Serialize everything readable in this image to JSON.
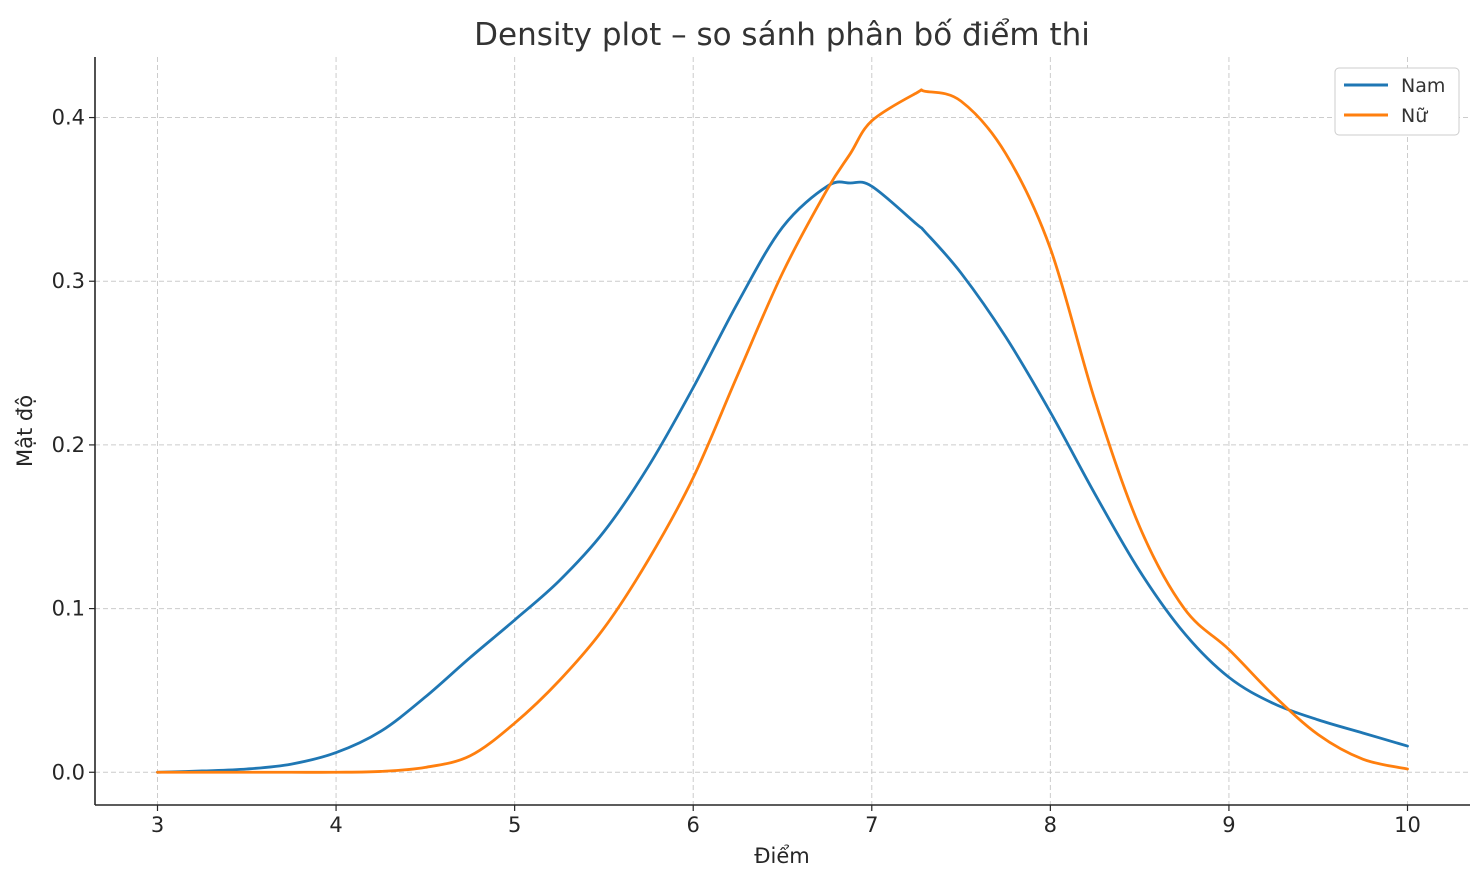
{
  "chart_data": {
    "type": "line",
    "title": "Density plot – so sánh phân bố điểm thi",
    "xlabel": "Điểm",
    "ylabel": "Mật độ",
    "xlim": [
      2.65,
      10.35
    ],
    "ylim": [
      -0.02,
      0.437
    ],
    "xticks": [
      3,
      4,
      5,
      6,
      7,
      8,
      9,
      10
    ],
    "yticks": [
      0.0,
      0.1,
      0.2,
      0.3,
      0.4
    ],
    "ytick_labels": [
      "0.0",
      "0.1",
      "0.2",
      "0.3",
      "0.4"
    ],
    "grid": true,
    "legend_position": "top-right",
    "x": [
      3.0,
      3.25,
      3.5,
      3.75,
      4.0,
      4.25,
      4.5,
      4.75,
      5.0,
      5.25,
      5.5,
      5.75,
      6.0,
      6.25,
      6.5,
      6.75,
      6.88,
      7.0,
      7.25,
      7.3,
      7.5,
      7.75,
      8.0,
      8.25,
      8.5,
      8.75,
      9.0,
      9.25,
      9.5,
      9.75,
      10.0
    ],
    "series": [
      {
        "name": "Nam",
        "color": "#1f77b4",
        "values": [
          0.0,
          0.0008,
          0.002,
          0.005,
          0.012,
          0.025,
          0.046,
          0.07,
          0.093,
          0.117,
          0.147,
          0.187,
          0.235,
          0.287,
          0.333,
          0.358,
          0.36,
          0.358,
          0.335,
          0.33,
          0.305,
          0.266,
          0.22,
          0.17,
          0.123,
          0.085,
          0.058,
          0.042,
          0.032,
          0.024,
          0.016
        ]
      },
      {
        "name": "Nữ",
        "color": "#ff7f0e",
        "values": [
          0.0,
          0.0,
          0.0,
          0.0,
          0.0,
          0.0005,
          0.003,
          0.01,
          0.03,
          0.056,
          0.088,
          0.13,
          0.18,
          0.243,
          0.305,
          0.356,
          0.378,
          0.398,
          0.415,
          0.416,
          0.41,
          0.378,
          0.32,
          0.227,
          0.15,
          0.1,
          0.075,
          0.047,
          0.023,
          0.008,
          0.002
        ]
      }
    ]
  }
}
